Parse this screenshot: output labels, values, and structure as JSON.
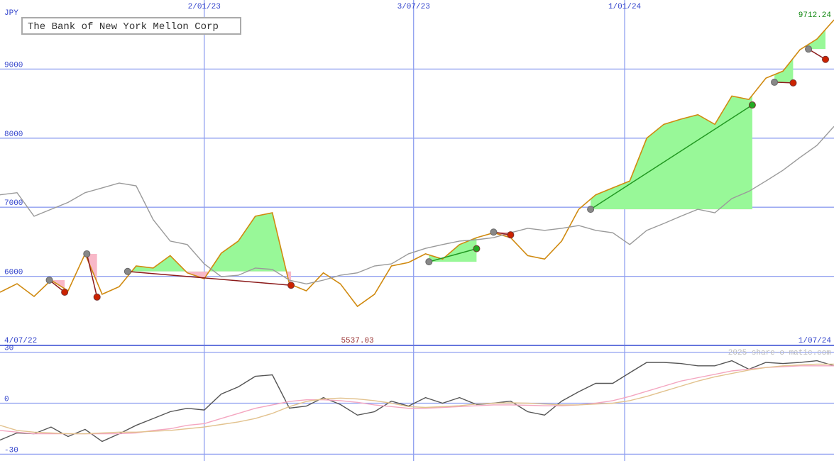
{
  "chart_data": [
    {
      "type": "line",
      "title": "The Bank of New York Mellon Corp",
      "y_label": "JPY",
      "xlim": [
        0,
        49
      ],
      "xticks": [
        {
          "value": 12,
          "label": "2/01/23"
        },
        {
          "value": 24.3,
          "label": "3/07/23"
        },
        {
          "value": 36.7,
          "label": "1/01/24"
        }
      ],
      "start_label": "4/07/22",
      "end_label": "1/07/24",
      "ylim": [
        5000,
        10000
      ],
      "yticks": [
        6000,
        7000,
        8000,
        9000
      ],
      "grid": true,
      "low": 5537.03,
      "series": [
        {
          "color": "#d08a10",
          "values": [
            5770,
            5893,
            5708,
            5945,
            5790,
            6325,
            5740,
            5850,
            6150,
            6120,
            6300,
            6050,
            5965,
            6335,
            6510,
            6870,
            6920,
            5890,
            5790,
            6050,
            5890,
            5565,
            5740,
            6150,
            6200,
            6325,
            6250,
            6460,
            6560,
            6630,
            6560,
            6300,
            6250,
            6510,
            6970,
            7180,
            7280,
            7380,
            8000,
            8200,
            8275,
            8340,
            8200,
            8610,
            8560,
            8870,
            8970,
            9280,
            9435,
            9712.24
          ]
        },
        {
          "color": "#9a9a9a",
          "values": [
            7180,
            7210,
            6870,
            6970,
            7070,
            7210,
            7280,
            7350,
            7310,
            6820,
            6510,
            6460,
            6180,
            5995,
            6015,
            6120,
            6100,
            5945,
            5890,
            5945,
            6015,
            6050,
            6150,
            6180,
            6325,
            6405,
            6460,
            6510,
            6530,
            6560,
            6630,
            6695,
            6665,
            6695,
            6735,
            6665,
            6630,
            6460,
            6665,
            6765,
            6870,
            6970,
            6920,
            7125,
            7230,
            7380,
            7535,
            7720,
            7895,
            8170
          ]
        }
      ],
      "trades": [
        {
          "x": [
            2.9,
            3.8
          ],
          "values": [
            5945,
            5770
          ],
          "color": "#cc2200"
        },
        {
          "x": [
            5.1,
            5.7
          ],
          "values": [
            6325,
            5700
          ],
          "color": "#cc2200"
        },
        {
          "x": [
            7.5,
            17.1
          ],
          "values": [
            6070,
            5870
          ],
          "color": "#cc2200"
        },
        {
          "x": [
            25.2,
            28.0
          ],
          "values": [
            6210,
            6400
          ],
          "color": "#22aa22"
        },
        {
          "x": [
            29.0,
            30.0
          ],
          "values": [
            6640,
            6600
          ],
          "color": "#cc2200"
        },
        {
          "x": [
            34.7,
            44.2
          ],
          "values": [
            6970,
            8480
          ],
          "color": "#22aa22"
        },
        {
          "x": [
            45.5,
            46.6
          ],
          "values": [
            8810,
            8800
          ],
          "color": "#cc2200"
        },
        {
          "x": [
            47.5,
            48.5
          ],
          "values": [
            9290,
            9140
          ],
          "color": "#cc2200"
        }
      ]
    },
    {
      "type": "line",
      "watermark": "2025 share-o-matic.com",
      "xlim": [
        0,
        49
      ],
      "ylim": [
        -34,
        34
      ],
      "yticks": [
        -30,
        0,
        30
      ],
      "series": [
        {
          "color": "#555555",
          "values": [
            -21.7,
            -17.5,
            -18,
            -14,
            -19.6,
            -15.4,
            -22.5,
            -18,
            -13,
            -9,
            -5,
            -3,
            -4,
            5.4,
            9.6,
            15.8,
            16.7,
            -2.9,
            -1.7,
            3.3,
            -0.8,
            -7,
            -5,
            1.2,
            -1.7,
            3.3,
            0,
            3.3,
            -0.8,
            0,
            1.2,
            -5,
            -7,
            1.2,
            6.7,
            11.7,
            11.7,
            17.9,
            24,
            24,
            23.3,
            22,
            22,
            25,
            20,
            24,
            23.3,
            24,
            25,
            22
          ]
        },
        {
          "color": "#f4a6c0",
          "values": [
            -16,
            -17,
            -18,
            -18,
            -18,
            -18,
            -18,
            -18,
            -17.5,
            -16,
            -15,
            -13,
            -12,
            -9,
            -6,
            -3,
            -1,
            1,
            2,
            2,
            1.5,
            0.5,
            -1,
            -2,
            -3,
            -3,
            -2.5,
            -2,
            -1.5,
            -1,
            -1,
            -1.2,
            -1.5,
            -1.5,
            -1,
            0,
            1.5,
            4,
            7,
            10,
            13,
            15,
            17,
            19,
            20,
            21,
            21.5,
            22,
            22,
            22
          ]
        },
        {
          "color": "#e2c28e",
          "values": [
            -13,
            -16,
            -17,
            -17.5,
            -18,
            -18,
            -17.5,
            -17,
            -17,
            -16.5,
            -16,
            -15,
            -14,
            -12.5,
            -11,
            -9,
            -6,
            -2,
            1,
            2.5,
            3,
            2.5,
            1.5,
            0,
            -2,
            -2.5,
            -2,
            -1.5,
            -0.5,
            0,
            0.2,
            0,
            -0.5,
            -1,
            -1,
            -0.5,
            0,
            1.5,
            4,
            7,
            10,
            13,
            15.5,
            17.5,
            19.5,
            21,
            22,
            22.5,
            23,
            23
          ]
        }
      ]
    }
  ]
}
